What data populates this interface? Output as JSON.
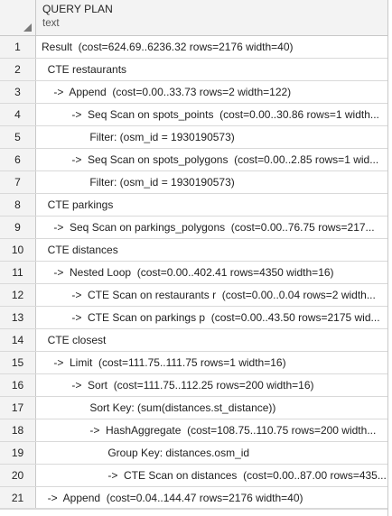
{
  "grid": {
    "column": {
      "name": "QUERY PLAN",
      "type": "text"
    },
    "corner_icon": "sort-corner-triangle-icon",
    "rows": [
      {
        "num": "1",
        "text": "Result  (cost=624.69..6236.32 rows=2176 width=40)"
      },
      {
        "num": "2",
        "text": "  CTE restaurants"
      },
      {
        "num": "3",
        "text": "    ->  Append  (cost=0.00..33.73 rows=2 width=122)"
      },
      {
        "num": "4",
        "text": "          ->  Seq Scan on spots_points  (cost=0.00..30.86 rows=1 width..."
      },
      {
        "num": "5",
        "text": "                Filter: (osm_id = 1930190573)"
      },
      {
        "num": "6",
        "text": "          ->  Seq Scan on spots_polygons  (cost=0.00..2.85 rows=1 wid..."
      },
      {
        "num": "7",
        "text": "                Filter: (osm_id = 1930190573)"
      },
      {
        "num": "8",
        "text": "  CTE parkings"
      },
      {
        "num": "9",
        "text": "    ->  Seq Scan on parkings_polygons  (cost=0.00..76.75 rows=217..."
      },
      {
        "num": "10",
        "text": "  CTE distances"
      },
      {
        "num": "11",
        "text": "    ->  Nested Loop  (cost=0.00..402.41 rows=4350 width=16)"
      },
      {
        "num": "12",
        "text": "          ->  CTE Scan on restaurants r  (cost=0.00..0.04 rows=2 width..."
      },
      {
        "num": "13",
        "text": "          ->  CTE Scan on parkings p  (cost=0.00..43.50 rows=2175 wid..."
      },
      {
        "num": "14",
        "text": "  CTE closest"
      },
      {
        "num": "15",
        "text": "    ->  Limit  (cost=111.75..111.75 rows=1 width=16)"
      },
      {
        "num": "16",
        "text": "          ->  Sort  (cost=111.75..112.25 rows=200 width=16)"
      },
      {
        "num": "17",
        "text": "                Sort Key: (sum(distances.st_distance))"
      },
      {
        "num": "18",
        "text": "                ->  HashAggregate  (cost=108.75..110.75 rows=200 width..."
      },
      {
        "num": "19",
        "text": "                      Group Key: distances.osm_id"
      },
      {
        "num": "20",
        "text": "                      ->  CTE Scan on distances  (cost=0.00..87.00 rows=435..."
      },
      {
        "num": "21",
        "text": "  ->  Append  (cost=0.04..144.47 rows=2176 width=40)"
      }
    ]
  }
}
